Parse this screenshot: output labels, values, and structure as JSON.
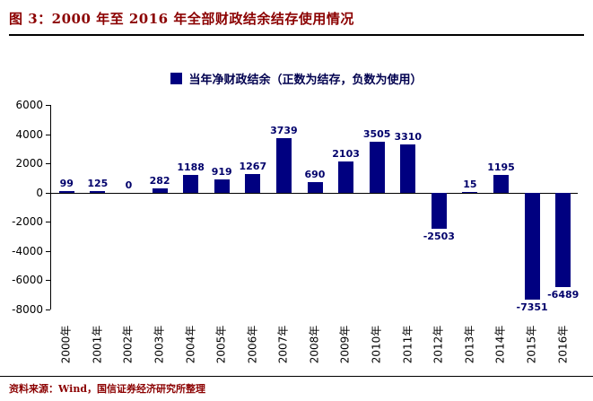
{
  "header": {
    "title": "图 3：2000 年至 2016 年全部财政结余结存使用情况"
  },
  "footer": {
    "source": "资料来源：Wind，国信证券经济研究所整理"
  },
  "chart_data": {
    "type": "bar",
    "title": "图 3：2000 年至 2016 年全部财政结余结存使用情况",
    "legend": "当年净财政结余（正数为结存，负数为使用）",
    "categories": [
      "2000年",
      "2001年",
      "2002年",
      "2003年",
      "2004年",
      "2005年",
      "2006年",
      "2007年",
      "2008年",
      "2009年",
      "2010年",
      "2011年",
      "2012年",
      "2013年",
      "2014年",
      "2015年",
      "2016年"
    ],
    "values": [
      99,
      125,
      0,
      282,
      1188,
      919,
      1267,
      3739,
      690,
      2103,
      3505,
      3310,
      -2503,
      15,
      1195,
      -7351,
      -6489
    ],
    "xlabel": "",
    "ylabel": "",
    "ylim": [
      -8000,
      6000
    ],
    "yticks": [
      6000,
      4000,
      2000,
      0,
      -2000,
      -4000,
      -6000,
      -8000
    ],
    "grid": false,
    "legend_position": "top",
    "bar_color": "#000080",
    "label_color": "#00006b",
    "axis_color": "#000000",
    "title_color": "#8B0000"
  }
}
